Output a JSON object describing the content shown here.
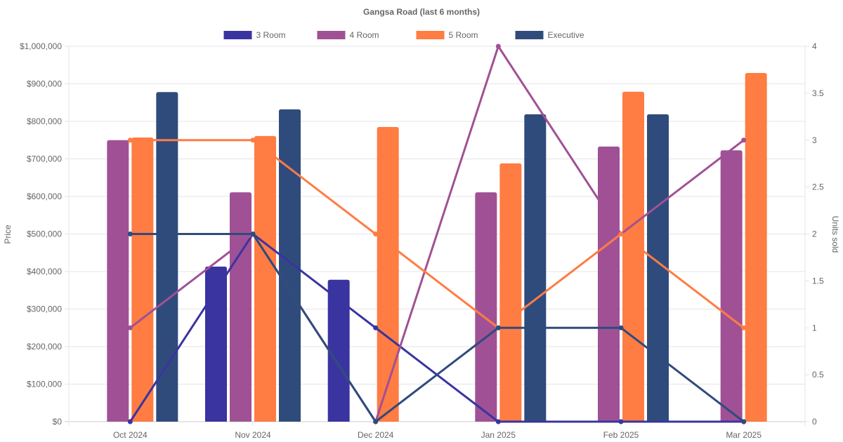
{
  "chart_data": {
    "type": "bar",
    "title": "Gangsa Road (last 6 months)",
    "categories": [
      "Oct 2024",
      "Nov 2024",
      "Dec 2024",
      "Jan 2025",
      "Feb 2025",
      "Mar 2025"
    ],
    "ylabel": "Price",
    "y2label": "Units sold",
    "ylim": [
      0,
      1000000
    ],
    "y2lim": [
      0,
      4
    ],
    "yticks": [
      "$0",
      "$100,000",
      "$200,000",
      "$300,000",
      "$400,000",
      "$500,000",
      "$600,000",
      "$700,000",
      "$800,000",
      "$900,000",
      "$1,000,000"
    ],
    "y2ticks": [
      "0",
      "0.5",
      "1",
      "1.5",
      "2",
      "2.5",
      "3",
      "3.5",
      "4"
    ],
    "grid": true,
    "legend_position": "top",
    "series": [
      {
        "name": "3 Room",
        "color": "#3a34a0",
        "price": [
          0,
          413000,
          378000,
          0,
          0,
          0
        ],
        "units": [
          0,
          2,
          1,
          0,
          0,
          0
        ]
      },
      {
        "name": "4 Room",
        "color": "#a05195",
        "price": [
          750000,
          611000,
          0,
          611000,
          733000,
          723000
        ],
        "units": [
          1,
          2,
          0,
          4,
          2,
          3
        ]
      },
      {
        "name": "5 Room",
        "color": "#ff7c43",
        "price": [
          757000,
          761000,
          785000,
          688000,
          879000,
          929000
        ],
        "units": [
          3,
          3,
          2,
          1,
          2,
          1
        ]
      },
      {
        "name": "Executive",
        "color": "#2f4b7c",
        "price": [
          878000,
          832000,
          0,
          819000,
          819000,
          0
        ],
        "units": [
          2,
          2,
          0,
          1,
          1,
          0
        ]
      }
    ]
  }
}
